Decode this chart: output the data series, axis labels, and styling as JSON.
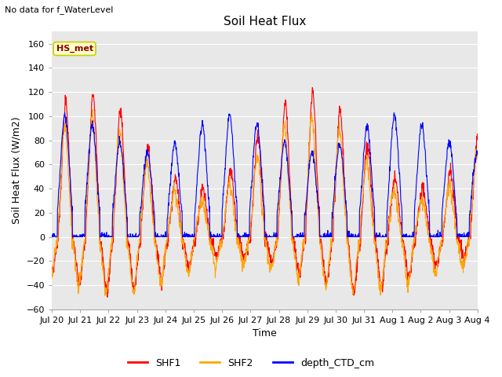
{
  "title": "Soil Heat Flux",
  "xlabel": "Time",
  "ylabel": "Soil Heat Flux (W/m2)",
  "ylim": [
    -60,
    170
  ],
  "yticks": [
    -60,
    -40,
    -20,
    0,
    20,
    40,
    60,
    80,
    100,
    120,
    140,
    160
  ],
  "note": "No data for f_WaterLevel",
  "station_label": "HS_met",
  "colors": [
    "red",
    "orange",
    "blue"
  ],
  "line_width": 0.8,
  "x_tick_labels": [
    "Jul 20",
    "Jul 21",
    "Jul 22",
    "Jul 23",
    "Jul 24",
    "Jul 25",
    "Jul 26",
    "Jul 27",
    "Jul 28",
    "Jul 29",
    "Jul 30",
    "Jul 31",
    "Aug 1",
    "Aug 2",
    "Aug 3",
    "Aug 4"
  ],
  "num_days": 15.5,
  "points_per_day": 96,
  "title_fontsize": 11,
  "label_fontsize": 9,
  "tick_fontsize": 8
}
